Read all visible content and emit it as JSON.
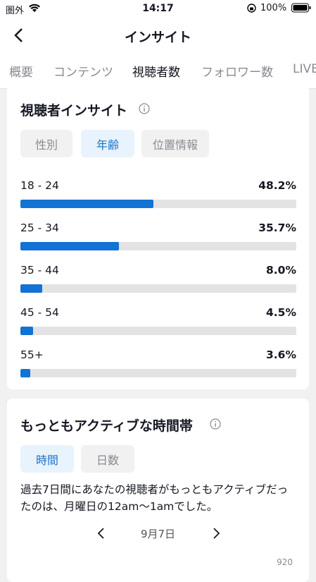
{
  "status_bar": {
    "carrier": "圏外",
    "time": "14:17",
    "battery": "100%"
  },
  "header": {
    "title": "インサイト"
  },
  "tabs": {
    "items": [
      "概要",
      "コンテンツ",
      "視聴者数",
      "フォロワー数",
      "LIVE"
    ],
    "active": 2
  },
  "viewer_insight": {
    "title": "視聴者インサイト",
    "filters": {
      "items": [
        "性別",
        "年齢",
        "位置情報"
      ],
      "active": 1
    },
    "xlim": [
      0,
      100
    ],
    "rows": [
      {
        "label": "18 - 24",
        "value": 48.2,
        "value_label": "48.2%"
      },
      {
        "label": "25 - 34",
        "value": 35.7,
        "value_label": "35.7%"
      },
      {
        "label": "35 - 44",
        "value": 8.0,
        "value_label": "8.0%"
      },
      {
        "label": "45 - 54",
        "value": 4.5,
        "value_label": "4.5%"
      },
      {
        "label": "55+",
        "value": 3.6,
        "value_label": "3.6%"
      }
    ]
  },
  "active_time": {
    "title": "もっともアクティブな時間帯",
    "filters": {
      "items": [
        "時間",
        "日数"
      ],
      "active": 0
    },
    "description": "過去7日間にあなたの視聴者がもっともアクティブだったのは、月曜日の12am〜1amでした。",
    "date": "9月7日",
    "axis_top": "920"
  }
}
